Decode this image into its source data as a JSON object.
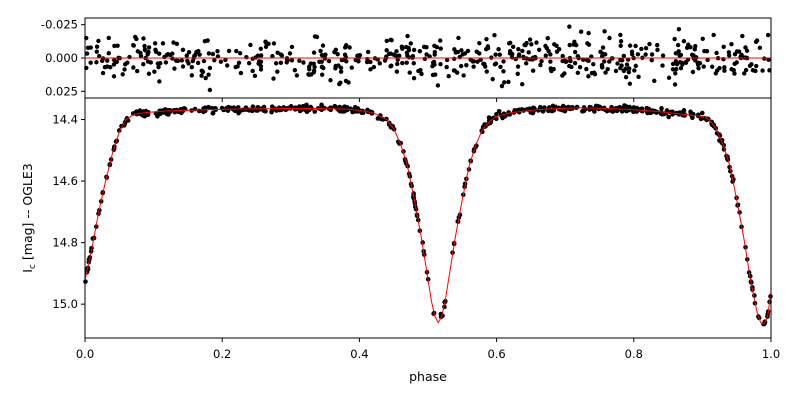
{
  "chart_data": [
    {
      "panel": "residuals",
      "type": "scatter",
      "ylim": [
        0.03,
        -0.03
      ],
      "xlim": [
        0.0,
        1.0
      ],
      "inverted_y": true,
      "yticks": [
        {
          "value": -0.025,
          "label": "-0.025"
        },
        {
          "value": 0.0,
          "label": "0.000"
        },
        {
          "value": 0.025,
          "label": "0.025"
        }
      ],
      "zero_line": 0.0,
      "scatter_amplitude_mag": 0.011,
      "n_points": 560,
      "grid": false,
      "colors": {
        "points": "#000000",
        "model": "#ff0000"
      }
    },
    {
      "panel": "light-curve",
      "type": "scatter",
      "xlabel": "phase",
      "ylabel": "I_c [mag] -- OGLE3",
      "ylabel_main": "I",
      "ylabel_sub": "c",
      "ylabel_rest": " [mag] -- OGLE3",
      "xlim": [
        0.0,
        1.0
      ],
      "ylim": [
        15.11,
        14.33
      ],
      "inverted_y": true,
      "xticks": [
        {
          "value": 0.0,
          "label": "0.0"
        },
        {
          "value": 0.2,
          "label": "0.2"
        },
        {
          "value": 0.4,
          "label": "0.4"
        },
        {
          "value": 0.6,
          "label": "0.6"
        },
        {
          "value": 0.8,
          "label": "0.8"
        },
        {
          "value": 1.0,
          "label": "1.0"
        }
      ],
      "yticks": [
        {
          "value": 14.4,
          "label": "14.4"
        },
        {
          "value": 14.6,
          "label": "14.6"
        },
        {
          "value": 14.8,
          "label": "14.8"
        },
        {
          "value": 15.0,
          "label": "15.0"
        }
      ],
      "model_curve": {
        "phase": [
          0.0,
          0.01,
          0.02,
          0.03,
          0.04,
          0.05,
          0.06,
          0.07,
          0.08,
          0.1,
          0.12,
          0.15,
          0.18,
          0.22,
          0.26,
          0.3,
          0.34,
          0.38,
          0.4,
          0.42,
          0.44,
          0.45,
          0.46,
          0.47,
          0.48,
          0.49,
          0.5,
          0.505,
          0.51,
          0.515,
          0.52,
          0.525,
          0.53,
          0.54,
          0.55,
          0.56,
          0.57,
          0.58,
          0.59,
          0.6,
          0.62,
          0.65,
          0.68,
          0.72,
          0.76,
          0.8,
          0.84,
          0.88,
          0.9,
          0.91,
          0.92,
          0.93,
          0.94,
          0.95,
          0.96,
          0.97,
          0.98,
          0.985,
          0.99,
          0.995,
          1.0
        ],
        "mag": [
          14.92,
          14.82,
          14.7,
          14.6,
          14.51,
          14.44,
          14.4,
          14.385,
          14.38,
          14.375,
          14.372,
          14.37,
          14.368,
          14.366,
          14.365,
          14.364,
          14.364,
          14.366,
          14.37,
          14.378,
          14.4,
          14.43,
          14.48,
          14.55,
          14.66,
          14.78,
          14.92,
          14.99,
          15.04,
          15.06,
          15.04,
          14.99,
          14.92,
          14.78,
          14.66,
          14.55,
          14.48,
          14.43,
          14.405,
          14.39,
          14.378,
          14.37,
          14.365,
          14.362,
          14.364,
          14.368,
          14.375,
          14.385,
          14.39,
          14.4,
          14.43,
          14.48,
          14.55,
          14.66,
          14.78,
          14.92,
          15.03,
          15.06,
          15.065,
          15.04,
          14.96
        ]
      },
      "photometric_scatter_mag": 0.005,
      "n_points": 560,
      "grid": false,
      "colors": {
        "points": "#000000",
        "model": "#ff0000"
      }
    }
  ]
}
